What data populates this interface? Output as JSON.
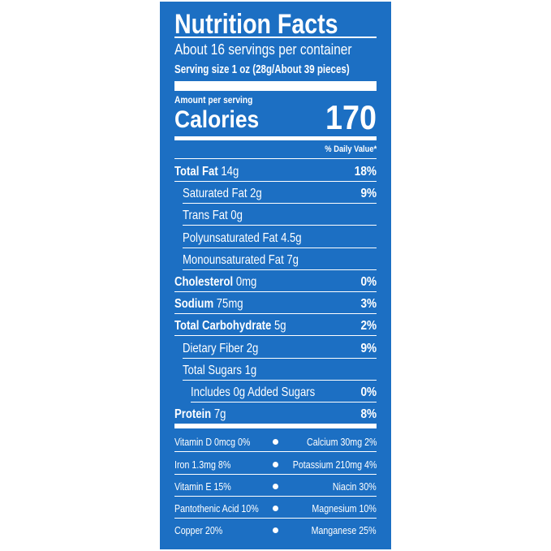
{
  "header": {
    "title": "Nutrition Facts",
    "servings": "About 16 servings per container",
    "serving_size": "Serving size 1 oz (28g/About 39 pieces)"
  },
  "calories": {
    "amount_label": "Amount per serving",
    "label": "Calories",
    "value": "170"
  },
  "daily_value_header": "% Daily Value*",
  "nutrients": [
    {
      "name": "Total Fat",
      "amount": "14g",
      "dv": "18%",
      "bold": true,
      "indent": 0
    },
    {
      "name": "Saturated Fat 2g",
      "dv": "9%",
      "indent": 1
    },
    {
      "name": "Trans Fat 0g",
      "indent": 1
    },
    {
      "name": "Polyunsaturated Fat 4.5g",
      "indent": 1
    },
    {
      "name": "Monounsaturated Fat 7g",
      "indent": 1
    },
    {
      "name": "Cholesterol",
      "amount": "0mg",
      "dv": "0%",
      "bold": true,
      "indent": 0
    },
    {
      "name": "Sodium",
      "amount": "75mg",
      "dv": "3%",
      "bold": true,
      "indent": 0
    },
    {
      "name": "Total Carbohydrate",
      "amount": "5g",
      "dv": "2%",
      "bold": true,
      "indent": 0
    },
    {
      "name": "Dietary Fiber 2g",
      "dv": "9%",
      "indent": 1
    },
    {
      "name": "Total Sugars 1g",
      "indent": 1
    },
    {
      "name": "Includes 0g Added Sugars",
      "dv": "0%",
      "indent": 2
    },
    {
      "name": "Protein",
      "amount": "7g",
      "dv": "8%",
      "bold": true,
      "indent": 0
    }
  ],
  "vitamins": [
    {
      "left": "Vitamin D 0mcg 0%",
      "right": "Calcium 30mg 2%"
    },
    {
      "left": "Iron 1.3mg 8%",
      "right": "Potassium 210mg 4%"
    },
    {
      "left": "Vitamin E 15%",
      "right": "Niacin 30%"
    },
    {
      "left": "Pantothenic Acid 10%",
      "right": "Magnesium 10%"
    },
    {
      "left": "Copper 20%",
      "right": "Manganese 25%"
    }
  ]
}
